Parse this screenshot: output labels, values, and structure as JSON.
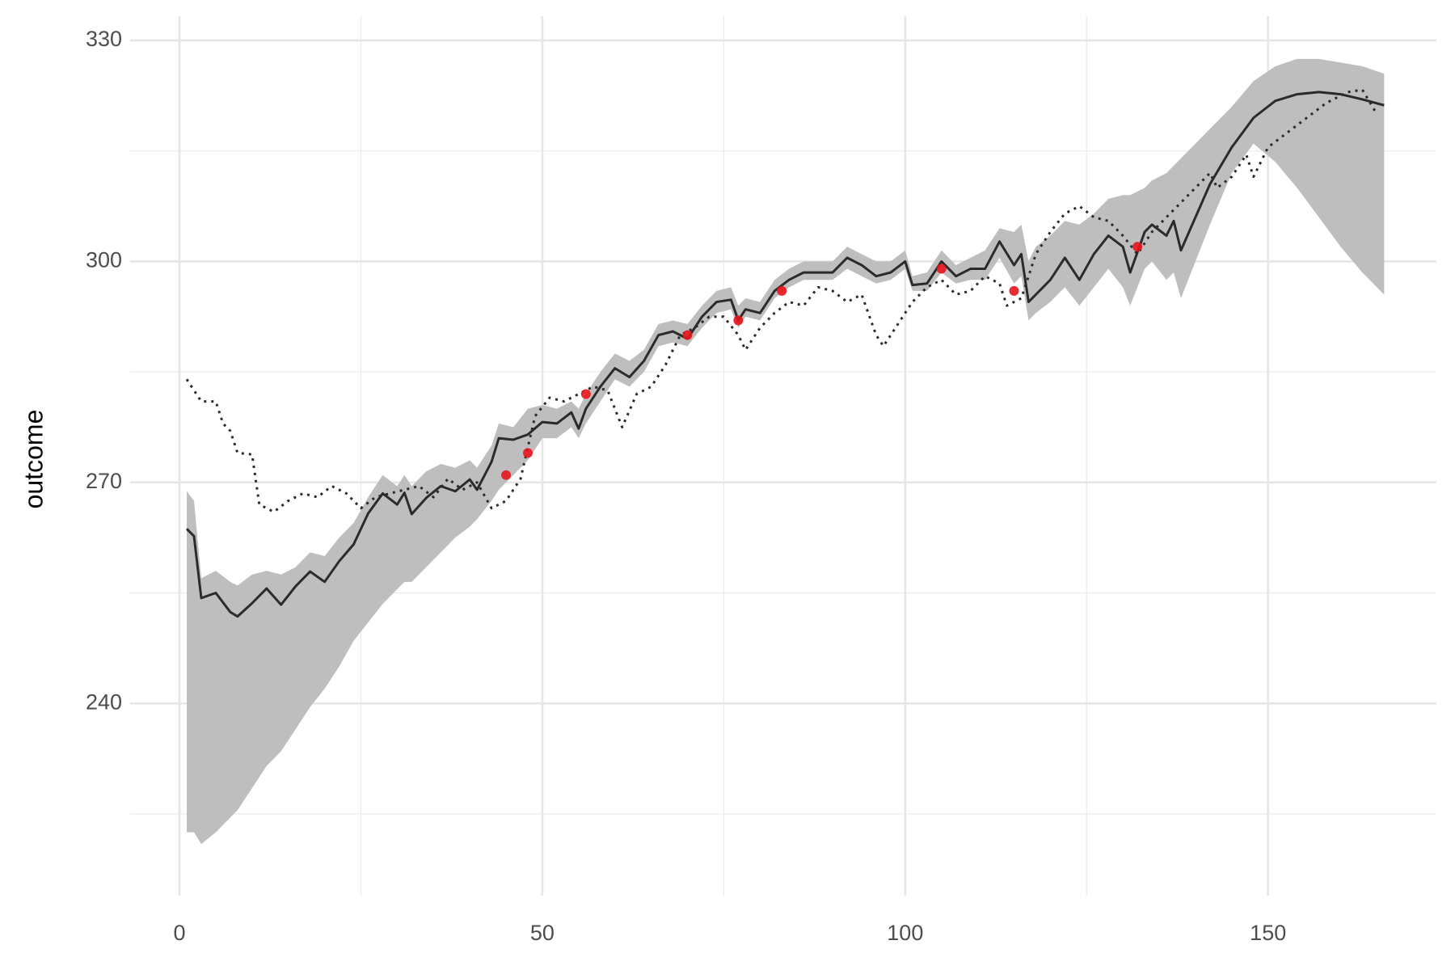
{
  "chart_data": {
    "type": "line",
    "y_label": "outcome",
    "xlim": [
      -6.8,
      173.2
    ],
    "ylim": [
      213.9,
      333.3
    ],
    "xticks": [
      0,
      50,
      100,
      150
    ],
    "yticks": [
      240,
      270,
      300,
      330
    ],
    "x_minor_ticks": [
      25,
      75,
      125
    ],
    "y_minor_ticks": [
      225,
      255,
      285,
      315
    ],
    "grid": true,
    "ribbon": {
      "color": "#bebebe",
      "x": [
        1,
        2,
        3,
        5,
        7,
        8,
        10,
        12,
        14,
        16,
        18,
        20,
        22,
        24,
        26,
        28,
        30,
        31,
        32,
        34,
        36,
        38,
        40,
        41,
        43,
        44,
        46,
        48,
        50,
        52,
        54,
        55,
        56,
        58,
        60,
        62,
        64,
        66,
        68,
        70,
        72,
        74,
        76,
        77,
        78,
        80,
        82,
        84,
        86,
        88,
        90,
        92,
        94,
        96,
        98,
        100,
        101,
        103,
        105,
        107,
        109,
        111,
        113,
        115,
        116,
        117,
        118,
        120,
        122,
        124,
        126,
        128,
        130,
        131,
        133,
        134,
        136,
        137,
        138,
        140,
        142,
        145,
        148,
        151,
        154,
        157,
        160,
        163,
        166
      ],
      "lower": [
        222.5,
        222.5,
        220.9,
        222.5,
        224.5,
        225.5,
        228.5,
        231.5,
        233.5,
        236.5,
        239.5,
        242,
        245,
        248.5,
        251,
        253.5,
        255.5,
        256.5,
        256.5,
        258.5,
        260.5,
        262.5,
        264,
        265,
        267.5,
        269,
        271,
        273,
        276,
        276,
        277.5,
        276,
        278,
        281,
        284,
        283,
        285,
        288.5,
        289,
        288.5,
        291,
        293,
        293.5,
        291,
        292.5,
        292,
        295,
        296.5,
        297.5,
        297.5,
        297.5,
        299,
        298,
        297,
        297.5,
        299,
        296,
        296,
        298.5,
        297,
        297.5,
        297.5,
        300.5,
        297,
        298,
        292,
        293,
        294.5,
        296.5,
        294,
        296.5,
        299,
        296.5,
        294,
        299,
        300,
        297.5,
        298.5,
        295,
        300,
        305,
        312,
        316,
        313.5,
        310,
        306,
        302,
        298.5,
        295.5
      ],
      "upper": [
        268.8,
        267.5,
        257,
        258,
        256.5,
        256,
        257.5,
        258,
        257.5,
        258.5,
        260.5,
        260,
        262.5,
        264.5,
        268,
        271,
        269.5,
        271,
        269.5,
        271.5,
        272.5,
        272,
        273,
        272,
        275,
        278,
        277.5,
        280,
        280.5,
        280,
        281,
        280,
        282,
        285,
        287.5,
        286.5,
        288,
        291.5,
        292,
        291.5,
        294,
        296,
        296.5,
        294,
        295,
        294.5,
        297.5,
        299,
        300,
        300,
        300,
        302,
        301,
        300,
        300,
        301.5,
        298,
        298.5,
        301.5,
        299.5,
        300.5,
        301.5,
        304.5,
        304,
        305,
        300,
        302,
        303.5,
        305.5,
        305,
        306.5,
        308.5,
        309,
        309,
        310,
        311,
        312,
        313,
        314,
        316,
        318,
        321,
        324.5,
        326.5,
        327.5,
        327.5,
        327,
        326.5,
        325.5
      ]
    },
    "series": [
      {
        "color": "#2b2b2b",
        "style": "solid",
        "x": [
          1,
          2,
          3,
          5,
          7,
          8,
          10,
          12,
          14,
          16,
          18,
          20,
          22,
          24,
          26,
          28,
          30,
          31,
          32,
          34,
          36,
          38,
          40,
          41,
          43,
          44,
          46,
          48,
          50,
          52,
          54,
          55,
          56,
          58,
          60,
          62,
          64,
          66,
          68,
          70,
          72,
          74,
          76,
          77,
          78,
          80,
          82,
          84,
          86,
          88,
          90,
          92,
          94,
          96,
          98,
          100,
          101,
          103,
          105,
          107,
          109,
          111,
          113,
          115,
          116,
          117,
          118,
          120,
          122,
          124,
          126,
          128,
          130,
          131,
          133,
          134,
          136,
          137,
          138,
          140,
          142,
          145,
          148,
          151,
          154,
          157,
          160,
          163,
          166
        ],
        "values": [
          263.7,
          262.7,
          254.3,
          255,
          252.4,
          251.8,
          253.6,
          255.6,
          253.4,
          255.9,
          257.9,
          256.5,
          259.3,
          261.6,
          265.8,
          268.5,
          267,
          268.6,
          265.7,
          267.9,
          269.5,
          268.8,
          270.4,
          269,
          272.8,
          276,
          275.8,
          276.5,
          278.2,
          278,
          279.5,
          277.3,
          280,
          283,
          285.5,
          284.3,
          286.5,
          290,
          290.5,
          289.5,
          292.5,
          294.5,
          294.8,
          292,
          293.5,
          293,
          296,
          297.5,
          298.5,
          298.5,
          298.5,
          300.5,
          299.5,
          298,
          298.5,
          300,
          296.8,
          297,
          300,
          298,
          299,
          299,
          302.7,
          299.5,
          301,
          294.5,
          295.5,
          297.5,
          300.5,
          297.5,
          301,
          303.5,
          302,
          298.5,
          304,
          305,
          303.5,
          305.5,
          301.5,
          306,
          310.5,
          315.5,
          319.5,
          321.8,
          322.7,
          323,
          322.7,
          322,
          321.2
        ]
      },
      {
        "color": "#2b2b2b",
        "style": "dotted",
        "x": [
          1,
          3,
          5,
          6,
          7,
          8,
          10,
          11,
          13,
          15,
          17,
          19,
          21,
          23,
          25,
          27,
          29,
          31,
          33,
          35,
          37,
          39,
          41,
          43,
          45,
          47,
          49,
          51,
          53,
          55,
          57,
          59,
          61,
          63,
          65,
          67,
          69,
          71,
          73,
          75,
          77,
          78,
          80,
          82,
          84,
          86,
          88,
          90,
          92,
          94,
          96,
          97,
          99,
          101,
          103,
          105,
          107,
          109,
          111,
          113,
          114,
          116,
          118,
          120,
          122,
          124,
          126,
          128,
          130,
          132,
          134,
          136,
          138,
          140,
          142,
          143,
          145,
          147,
          148,
          150,
          152,
          154,
          156,
          158,
          160,
          161,
          163,
          165
        ],
        "values": [
          284,
          281,
          281,
          278,
          277,
          274,
          273.8,
          267,
          266,
          267.5,
          268.5,
          268,
          269.5,
          268.5,
          266.5,
          268,
          268.5,
          269,
          269.5,
          268,
          270.5,
          269,
          270,
          266.5,
          267.5,
          270.5,
          279,
          281.5,
          281,
          282,
          283,
          282.5,
          277.5,
          282,
          283,
          286,
          290,
          291,
          292.5,
          292.5,
          290,
          288,
          291,
          293,
          294.5,
          294,
          296.5,
          296,
          294.5,
          295.5,
          290,
          288.5,
          291.5,
          294.5,
          296.5,
          297.5,
          295.5,
          296,
          298,
          297,
          294,
          295,
          301,
          304,
          306.5,
          307.5,
          306,
          305.5,
          303.5,
          301,
          304,
          306,
          308,
          310,
          312,
          310,
          311.5,
          314.5,
          311.5,
          315.5,
          317,
          318.5,
          320,
          321.5,
          322.5,
          323,
          323.3,
          320
        ]
      }
    ],
    "points": {
      "color": "#e8141c",
      "x": [
        45,
        48,
        56,
        70,
        77,
        83,
        105,
        115,
        132
      ],
      "values": [
        271,
        274,
        282,
        290,
        292,
        296,
        299,
        296,
        302
      ]
    }
  }
}
